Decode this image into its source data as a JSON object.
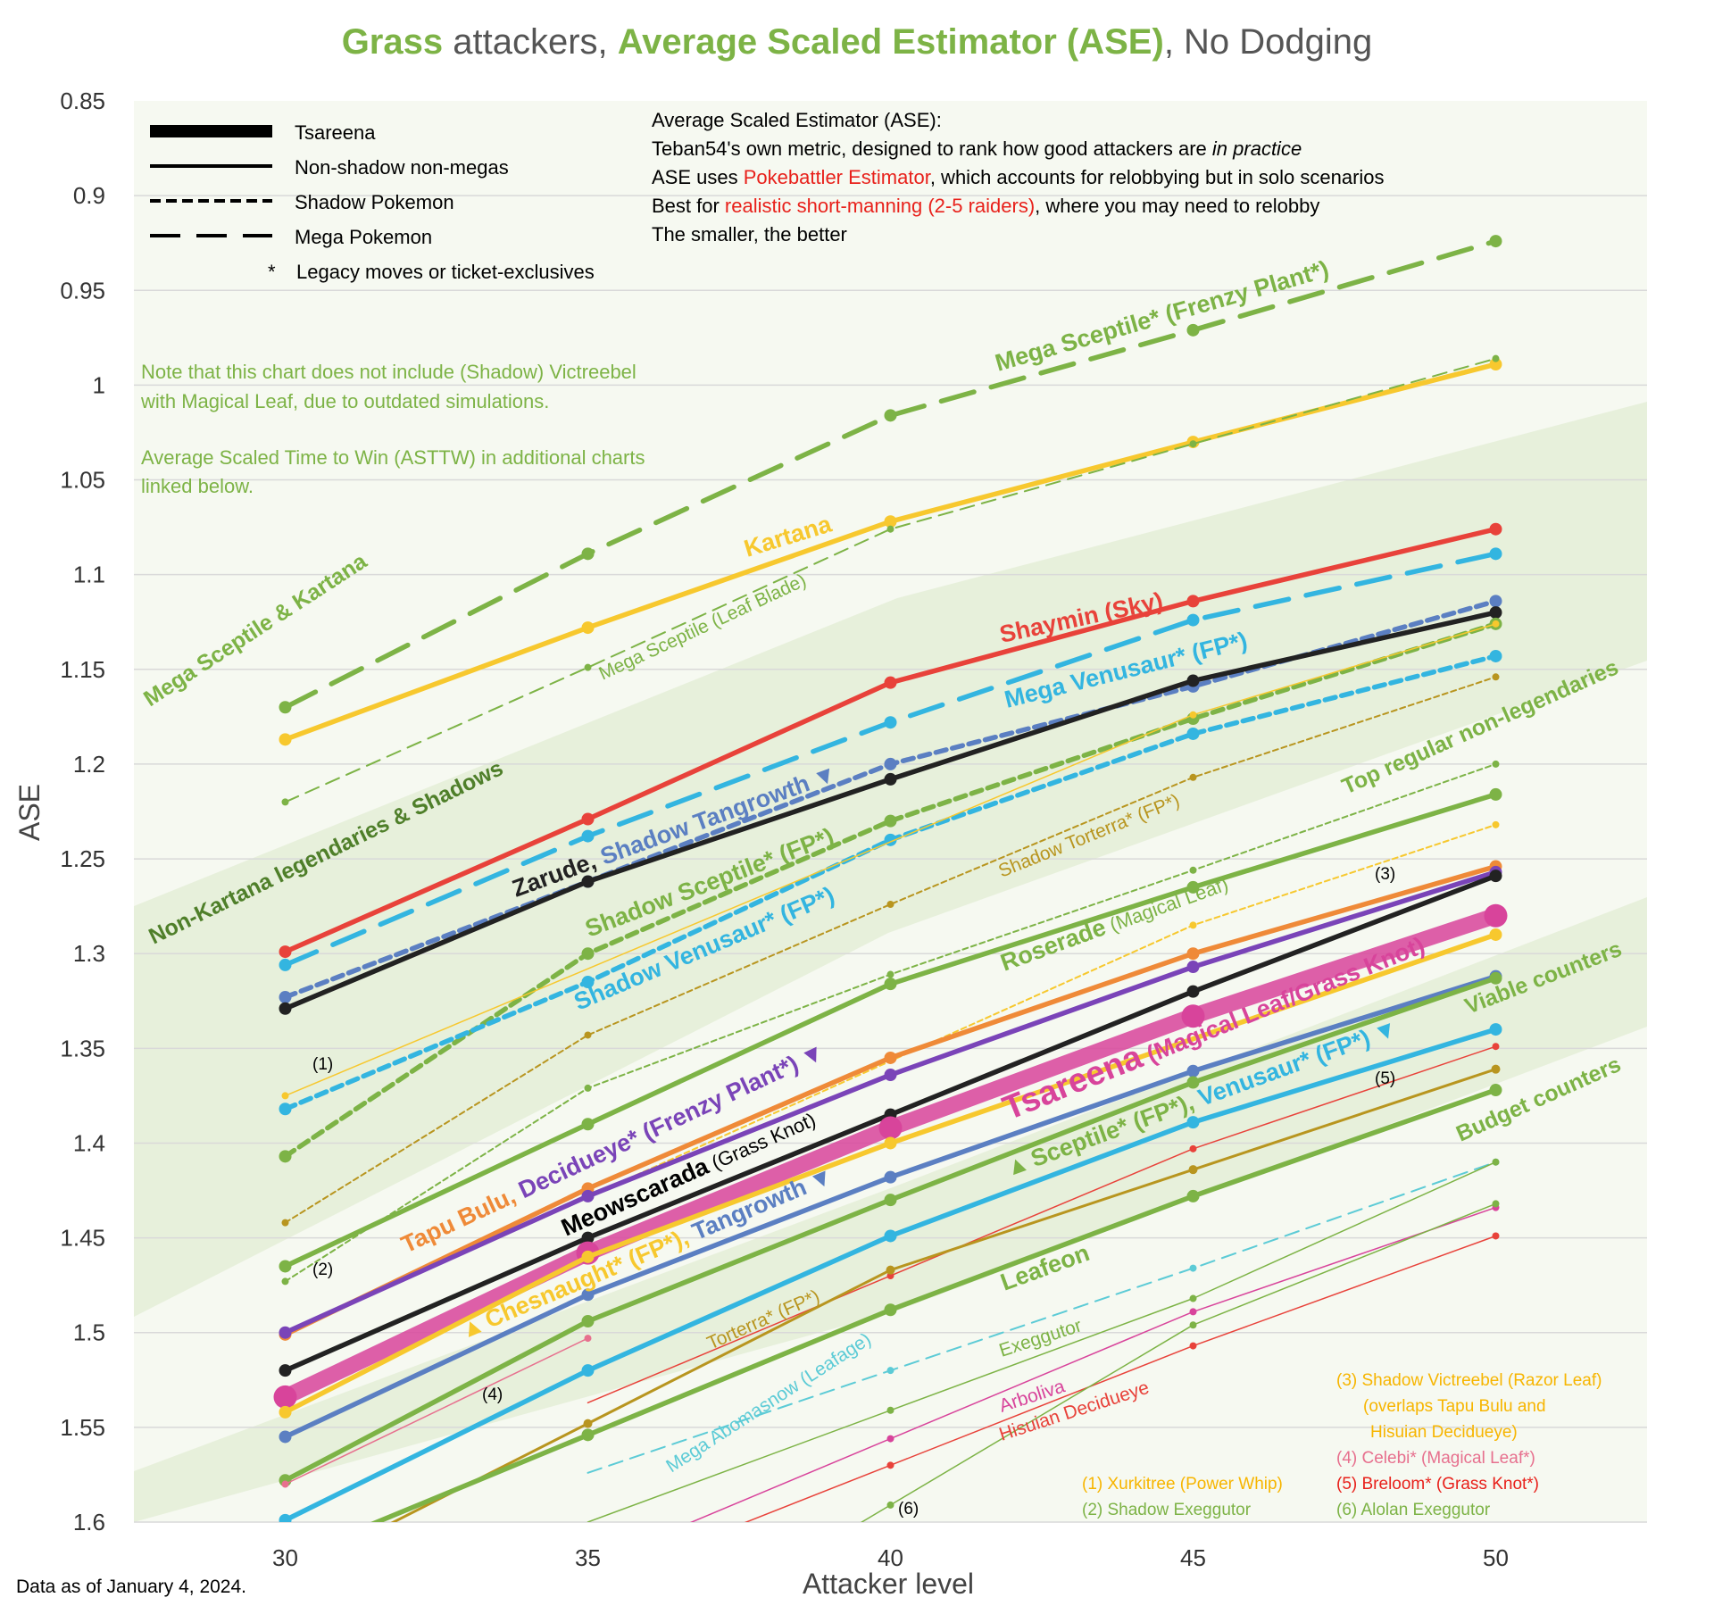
{
  "title": {
    "part1": "Grass",
    "part2": " attackers, ",
    "part3": "Average Scaled Estimator (ASE)",
    "part4": ", No Dodging"
  },
  "footer": "Data as of January 4, 2024.",
  "colors": {
    "green": "#7db346",
    "darkgreen": "#4f7f2a",
    "red": "#e8423a",
    "gold": "#f7c82e",
    "cyan": "#33b5e0",
    "orange": "#ef8a38",
    "purple": "#7a44b8",
    "black": "#222222",
    "magenta": "#d8449b",
    "steel": "#5b7fc2",
    "olive": "#b8951f"
  },
  "legend": {
    "tsareena": "Tsareena",
    "regular": "Non-shadow non-megas",
    "shadow": "Shadow Pokemon",
    "mega": "Mega Pokemon",
    "legacy_star": "*",
    "legacy": "Legacy moves or ticket-exclusives"
  },
  "info": {
    "line1": "Average Scaled Estimator (ASE):",
    "line2a": "Teban54's own metric, designed to rank how good attackers are ",
    "line2b": "in practice",
    "line3a": "ASE uses ",
    "line3b": "Pokebattler Estimator",
    "line3c": ", which accounts for relobbying but in solo scenarios",
    "line4a": "Best for ",
    "line4b": "realistic short-manning (2-5 raiders)",
    "line4c": ", where you may need to relobby",
    "line5": "The smaller, the better"
  },
  "notes": {
    "n1": "Note that this chart does not include (Shadow) Victreebel",
    "n2": "with Magical Leaf, due to outdated simulations.",
    "n3": "Average Scaled Time to Win (ASTTW) in additional charts",
    "n4": "linked below."
  },
  "footnotes": {
    "f3a": "(3) Shadow Victreebel (Razor Leaf)",
    "f3b": "(overlaps Tapu Bulu and",
    "f3c": "Hisuian Decidueye)",
    "f4": "(4) Celebi* (Magical Leaf*)",
    "f5": "(5) Breloom* (Grass Knot*)",
    "f6": "(6) Alolan Exeggutor",
    "f1": "(1) Xurkitree (Power Whip)",
    "f2": "(2) Shadow Exeggutor"
  },
  "tiers": {
    "t1": "Mega Sceptile & Kartana",
    "t2": "Non-Kartana legendaries & Shadows",
    "t3": "Top regular non-legendaries",
    "t4": "Viable counters",
    "t5": "Budget counters"
  },
  "labels": {
    "mega_sceptile_fp": "Mega Sceptile* (Frenzy Plant*)",
    "kartana": "Kartana",
    "mega_sceptile_lb": "Mega Sceptile (Leaf Blade)",
    "shaymin": "Shaymin (Sky)",
    "mega_venusaur": "Mega Venusaur* (FP*)",
    "zarude": "Zarude,",
    "shadow_tangrowth": " Shadow Tangrowth",
    "tri_down": "▼",
    "tri_up": "▲",
    "shadow_sceptile": "Shadow Sceptile* (FP*)",
    "shadow_venusaur": "Shadow Venusaur* (FP*)",
    "shadow_torterra": "Shadow Torterra* (FP*)",
    "roserade_a": "Roserade",
    "roserade_b": " (Magical Leaf)",
    "tsareena_a": "Tsareena",
    "tsareena_b": " (Magical Leaf/Grass Knot)",
    "sceptile": "Sceptile* (FP*),",
    "venusaur": " Venusaur* (FP*)",
    "tapu_bulu": "Tapu Bulu,",
    "decidueye": " Decidueye* (Frenzy Plant*)",
    "meowscarada_a": "Meowscarada",
    "meowscarada_b": " (Grass Knot)",
    "chesnaught": "Chesnaught* (FP*),",
    "tangrowth": " Tangrowth",
    "torterra": "Torterra* (FP*)",
    "leafeon": "Leafeon",
    "exeggutor": "Exeggutor",
    "arboliva": "Arboliva",
    "hisuian_decidueye": "Hisuian Decidueye",
    "mega_abomasnow": "Mega Abomasnow (Leafage)",
    "m1": "(1)",
    "m2": "(2)",
    "m3": "(3)",
    "m4": "(4)",
    "m5": "(5)",
    "m6": "(6)"
  },
  "chart_data": {
    "type": "line",
    "title": "Grass attackers, Average Scaled Estimator (ASE), No Dodging",
    "xlabel": "Attacker level",
    "ylabel": "ASE",
    "x": [
      30,
      35,
      40,
      45,
      50
    ],
    "xlim": [
      27.5,
      52.5
    ],
    "ylim": [
      0.85,
      1.6
    ],
    "y_inverted": true,
    "xticks": [
      "30",
      "35",
      "40",
      "45",
      "50"
    ],
    "yticks": [
      "0.85",
      "0.9",
      "0.95",
      "1",
      "1.05",
      "1.1",
      "1.15",
      "1.2",
      "1.25",
      "1.3",
      "1.35",
      "1.4",
      "1.45",
      "1.5",
      "1.55",
      "1.6"
    ],
    "series": [
      {
        "name": "Mega Sceptile* (Frenzy Plant*)",
        "color": "#7db346",
        "style": "mega",
        "values": [
          1.17,
          1.089,
          1.016,
          0.971,
          0.924
        ]
      },
      {
        "name": "Kartana",
        "color": "#f7c82e",
        "style": "regular",
        "values": [
          1.187,
          1.128,
          1.072,
          1.03,
          0.989
        ]
      },
      {
        "name": "Mega Sceptile (Leaf Blade)",
        "color": "#7db346",
        "style": "mega-thin",
        "values": [
          1.22,
          1.149,
          1.076,
          1.031,
          0.986
        ]
      },
      {
        "name": "Shaymin (Sky)",
        "color": "#e8423a",
        "style": "regular",
        "values": [
          1.299,
          1.229,
          1.157,
          1.114,
          1.076
        ]
      },
      {
        "name": "Mega Venusaur* (FP*)",
        "color": "#33b5e0",
        "style": "mega",
        "values": [
          1.306,
          1.238,
          1.178,
          1.124,
          1.089
        ]
      },
      {
        "name": "Shadow Tangrowth",
        "color": "#5b7fc2",
        "style": "shadow",
        "values": [
          1.323,
          1.262,
          1.2,
          1.159,
          1.114
        ]
      },
      {
        "name": "Zarude",
        "color": "#222222",
        "style": "regular",
        "values": [
          1.329,
          1.262,
          1.208,
          1.156,
          1.12
        ]
      },
      {
        "name": "Shadow Sceptile* (FP*)",
        "color": "#7db346",
        "style": "shadow",
        "values": [
          1.407,
          1.3,
          1.23,
          1.176,
          1.126
        ]
      },
      {
        "name": "Shadow Venusaur* (FP*)",
        "color": "#33b5e0",
        "style": "shadow",
        "values": [
          1.382,
          1.315,
          1.24,
          1.184,
          1.143
        ]
      },
      {
        "name": "Xurkitree (Power Whip)",
        "color": "#f7c82e",
        "style": "thin",
        "values": [
          1.375,
          null,
          null,
          1.174,
          1.126
        ]
      },
      {
        "name": "Shadow Torterra* (FP*)",
        "color": "#b8951f",
        "style": "shadow-thin",
        "values": [
          1.442,
          1.343,
          1.274,
          1.207,
          1.154
        ]
      },
      {
        "name": "Shadow Exeggutor",
        "color": "#7db346",
        "style": "shadow-thin",
        "values": [
          1.473,
          1.371,
          1.311,
          1.256,
          1.2
        ]
      },
      {
        "name": "Shadow Victreebel (Razor Leaf)",
        "color": "#f7c82e",
        "style": "shadow-thin",
        "values": [
          1.5,
          null,
          null,
          1.285,
          1.232
        ]
      },
      {
        "name": "Roserade (Magical Leaf)",
        "color": "#7db346",
        "style": "regular",
        "values": [
          1.465,
          1.39,
          1.316,
          1.265,
          1.216
        ]
      },
      {
        "name": "Tapu Bulu",
        "color": "#ef8a38",
        "style": "regular",
        "values": [
          1.501,
          1.424,
          1.355,
          1.3,
          1.254
        ]
      },
      {
        "name": "Decidueye* (Frenzy Plant*)",
        "color": "#7a44b8",
        "style": "regular",
        "values": [
          1.5,
          1.428,
          1.364,
          1.307,
          1.257
        ]
      },
      {
        "name": "Meowscarada (Grass Knot)",
        "color": "#222222",
        "style": "regular",
        "values": [
          1.52,
          1.45,
          1.385,
          1.32,
          1.259
        ]
      },
      {
        "name": "Tsareena (Magical Leaf/Grass Knot)",
        "color": "#d8449b",
        "style": "tsareena",
        "values": [
          1.534,
          1.458,
          1.392,
          1.333,
          1.28
        ]
      },
      {
        "name": "Chesnaught* (FP*)",
        "color": "#f7c82e",
        "style": "regular",
        "values": [
          1.542,
          1.46,
          1.4,
          null,
          1.29
        ]
      },
      {
        "name": "Tangrowth",
        "color": "#5b7fc2",
        "style": "regular",
        "values": [
          1.555,
          1.48,
          1.418,
          1.362,
          1.312
        ]
      },
      {
        "name": "Sceptile* (FP*)",
        "color": "#7db346",
        "style": "regular",
        "values": [
          1.578,
          1.494,
          1.43,
          1.368,
          1.313
        ]
      },
      {
        "name": "Celebi* (Magical Leaf*)",
        "color": "#e7708e",
        "style": "thin",
        "values": [
          1.58,
          1.503,
          null,
          null,
          null
        ]
      },
      {
        "name": "Venusaur* (FP*)",
        "color": "#33b5e0",
        "style": "regular",
        "values": [
          1.599,
          1.52,
          1.449,
          1.389,
          1.34
        ]
      },
      {
        "name": "Breloom* (Grass Knot*)",
        "color": "#e8423a",
        "style": "thin",
        "values": [
          null,
          null,
          1.47,
          1.403,
          1.349
        ]
      },
      {
        "name": "Torterra* (FP*)",
        "color": "#b8951f",
        "style": "regular-thin",
        "values": [
          null,
          1.548,
          1.467,
          1.414,
          1.361
        ]
      },
      {
        "name": "Leafeon",
        "color": "#7db346",
        "style": "regular",
        "values": [
          null,
          1.554,
          1.488,
          1.428,
          1.372
        ]
      },
      {
        "name": "Mega Abomasnow (Leafage)",
        "color": "#5ccbd6",
        "style": "mega-thin",
        "values": [
          null,
          null,
          1.52,
          1.466,
          1.41
        ]
      },
      {
        "name": "Exeggutor",
        "color": "#7db346",
        "style": "thin",
        "values": [
          null,
          null,
          1.541,
          1.482,
          1.41
        ]
      },
      {
        "name": "Arboliva",
        "color": "#d8449b",
        "style": "thin",
        "values": [
          null,
          null,
          1.556,
          1.489,
          1.434
        ]
      },
      {
        "name": "Hisuian Decidueye",
        "color": "#e8423a",
        "style": "thin",
        "values": [
          null,
          null,
          1.57,
          1.507,
          1.449
        ]
      },
      {
        "name": "Alolan Exeggutor",
        "color": "#7db346",
        "style": "thin",
        "values": [
          null,
          null,
          1.591,
          1.496,
          1.432
        ]
      }
    ]
  }
}
